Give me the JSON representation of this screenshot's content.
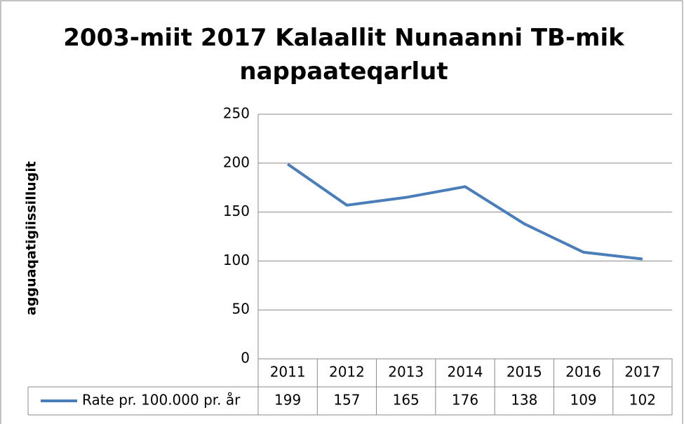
{
  "chart_data": {
    "type": "line",
    "title": "2003-miit 2017 Kalaallit Nunaanni TB-mik nappaateqarlut",
    "y_label": "agguaqatigiissillugit",
    "categories": [
      "2011",
      "2012",
      "2013",
      "2014",
      "2015",
      "2016",
      "2017"
    ],
    "series": [
      {
        "name": "Rate pr. 100.000 pr. år",
        "color": "#4a7ebb",
        "values": [
          199,
          157,
          165,
          176,
          138,
          109,
          102
        ]
      }
    ],
    "ylim": [
      0,
      250
    ],
    "yticks": [
      0,
      50,
      100,
      150,
      200,
      250
    ],
    "grid": true,
    "data_table": true
  }
}
